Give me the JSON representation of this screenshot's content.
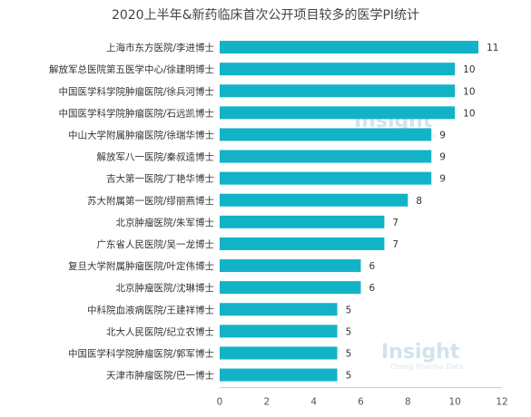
{
  "chart_data": {
    "type": "bar",
    "orientation": "horizontal",
    "title": "2020上半年&新药临床首次公开项目较多的医学PI统计",
    "categories": [
      "上海市东方医院/李进博士",
      "解放军总医院第五医学中心/徐建明博士",
      "中国医学科学院肿瘤医院/徐兵河博士",
      "中国医学科学院肿瘤医院/石远凯博士",
      "中山大学附属肿瘤医院/徐瑞华博士",
      "解放军八一医院/秦叔逵博士",
      "吉大第一医院/丁艳华博士",
      "苏大附属第一医院/缪丽燕博士",
      "北京肿瘤医院/朱军博士",
      "广东省人民医院/吴一龙博士",
      "复旦大学附属肿瘤医院/叶定伟博士",
      "北京肿瘤医院/沈琳博士",
      "中科院血液病医院/王建祥博士",
      "北大人民医院/纪立农博士",
      "中国医学科学院肿瘤医院/郭军博士",
      "天津市肿瘤医院/巴一博士"
    ],
    "values": [
      11,
      10,
      10,
      10,
      9,
      9,
      9,
      8,
      7,
      7,
      6,
      6,
      5,
      5,
      5,
      5
    ],
    "xlim": [
      0,
      12
    ],
    "xticks": [
      0,
      2,
      4,
      6,
      8,
      10,
      12
    ],
    "grid": false,
    "legend": "none",
    "bar_color": "#12b3c7"
  },
  "watermark": {
    "text": "Insight",
    "sub": "Cheng Pharma Data"
  }
}
